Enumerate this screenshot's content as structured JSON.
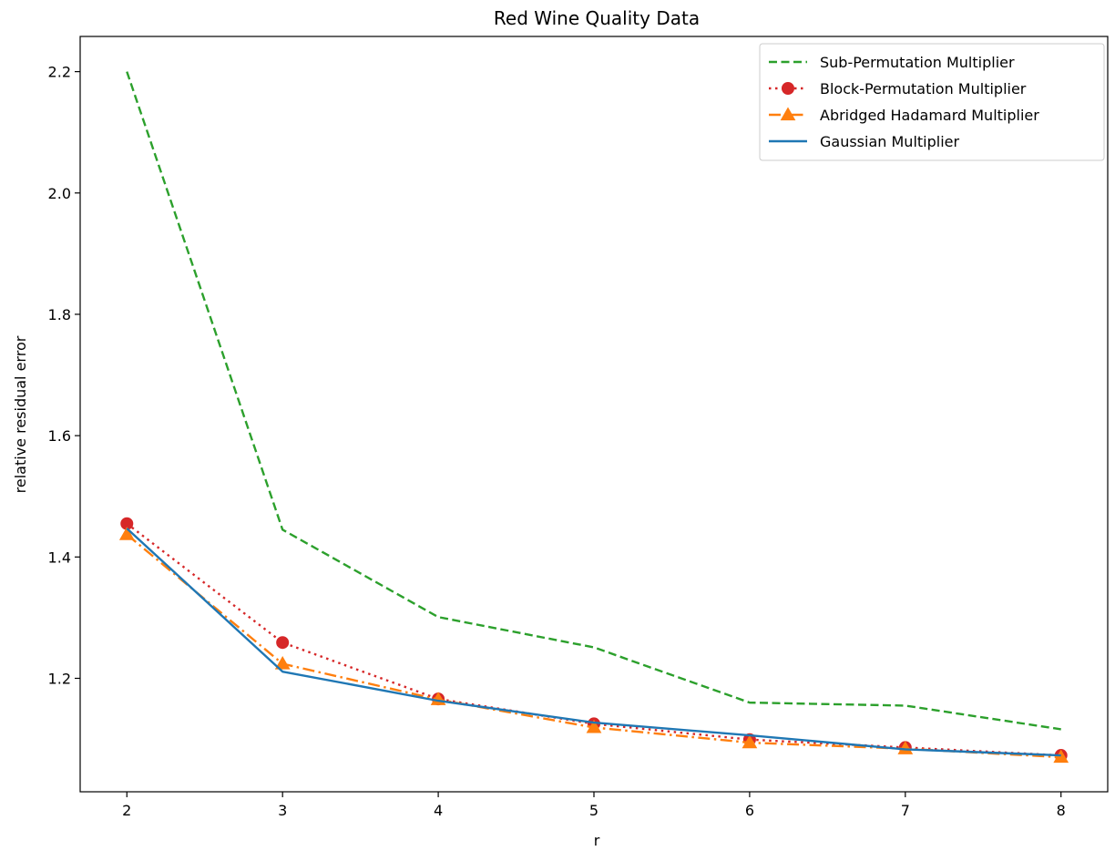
{
  "chart_data": {
    "type": "line",
    "title": "Red Wine Quality Data",
    "xlabel": "r",
    "ylabel": "relative residual error",
    "x": [
      2,
      3,
      4,
      5,
      6,
      7,
      8
    ],
    "xlim": [
      1.7,
      8.3
    ],
    "ylim": [
      1.013,
      2.258
    ],
    "xticks": [
      2,
      3,
      4,
      5,
      6,
      7,
      8
    ],
    "yticks": [
      1.2,
      1.4,
      1.6,
      1.8,
      2.0,
      2.2
    ],
    "ytick_labels": [
      "1.2",
      "1.4",
      "1.6",
      "1.8",
      "2.0",
      "2.2"
    ],
    "grid": false,
    "legend_position": "top-right",
    "series": [
      {
        "name": "Sub-Permutation Multiplier",
        "color": "#2ca02c",
        "linestyle": "dashed",
        "marker": "none",
        "values": [
          2.2,
          1.445,
          1.301,
          1.251,
          1.16,
          1.155,
          1.116
        ]
      },
      {
        "name": "Block-Permutation Multiplier",
        "color": "#d62728",
        "linestyle": "dotted",
        "marker": "circle",
        "values": [
          1.455,
          1.259,
          1.166,
          1.125,
          1.099,
          1.086,
          1.073
        ]
      },
      {
        "name": "Abridged Hadamard Multiplier",
        "color": "#ff7f0e",
        "linestyle": "dashdot",
        "marker": "triangle",
        "values": [
          1.437,
          1.224,
          1.165,
          1.119,
          1.094,
          1.084,
          1.07
        ]
      },
      {
        "name": "Gaussian Multiplier",
        "color": "#1f77b4",
        "linestyle": "solid",
        "marker": "none",
        "values": [
          1.447,
          1.211,
          1.163,
          1.127,
          1.106,
          1.083,
          1.073
        ]
      }
    ]
  }
}
